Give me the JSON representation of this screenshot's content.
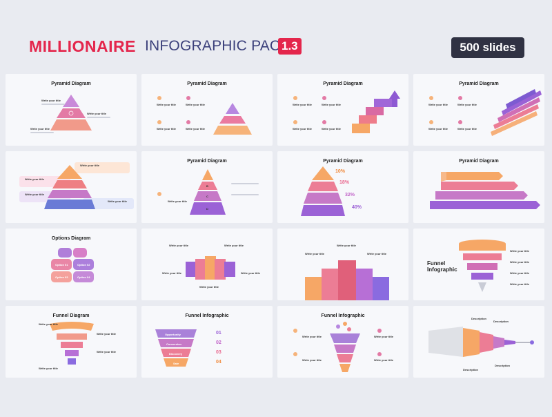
{
  "header": {
    "brand": "MILLIONAIRE",
    "pack": "INFOGRAPHIC PACK",
    "version": "1.3",
    "badge": "500 slides"
  },
  "slides": [
    {
      "title": "Pyramid Diagram"
    },
    {
      "title": "Pyramid Diagram"
    },
    {
      "title": "Pyramid Diagram"
    },
    {
      "title": "Pyramid Diagram"
    },
    {
      "title": ""
    },
    {
      "title": "Pyramid Diagram"
    },
    {
      "title": "Pyramid Diagram"
    },
    {
      "title": "Pyramid Diagram"
    },
    {
      "title": "Options Diagram"
    },
    {
      "title": ""
    },
    {
      "title": ""
    },
    {
      "title": "Funnel Infographic"
    },
    {
      "title": "Funnel Diagram"
    },
    {
      "title": "Funnel Infographic"
    },
    {
      "title": "Funnel Infographic"
    },
    {
      "title": ""
    }
  ],
  "labels": {
    "write_title": "Write your title",
    "pct": [
      "10%",
      "18%",
      "32%",
      "40%"
    ],
    "letters": [
      "A",
      "B",
      "C",
      "D"
    ],
    "nums": [
      "01",
      "02",
      "03",
      "04"
    ],
    "options": [
      "Option 01",
      "Option 02",
      "Option 03",
      "Option 04"
    ],
    "funnel_steps": [
      "Opportunity",
      "Conversion",
      "Discovery",
      "Sale"
    ],
    "description": "Description"
  },
  "colors": {
    "orange": "#f7a35c",
    "pink": "#e9698f",
    "purple": "#9b5fd6",
    "blue": "#6a79d8",
    "red": "#e4264c"
  }
}
